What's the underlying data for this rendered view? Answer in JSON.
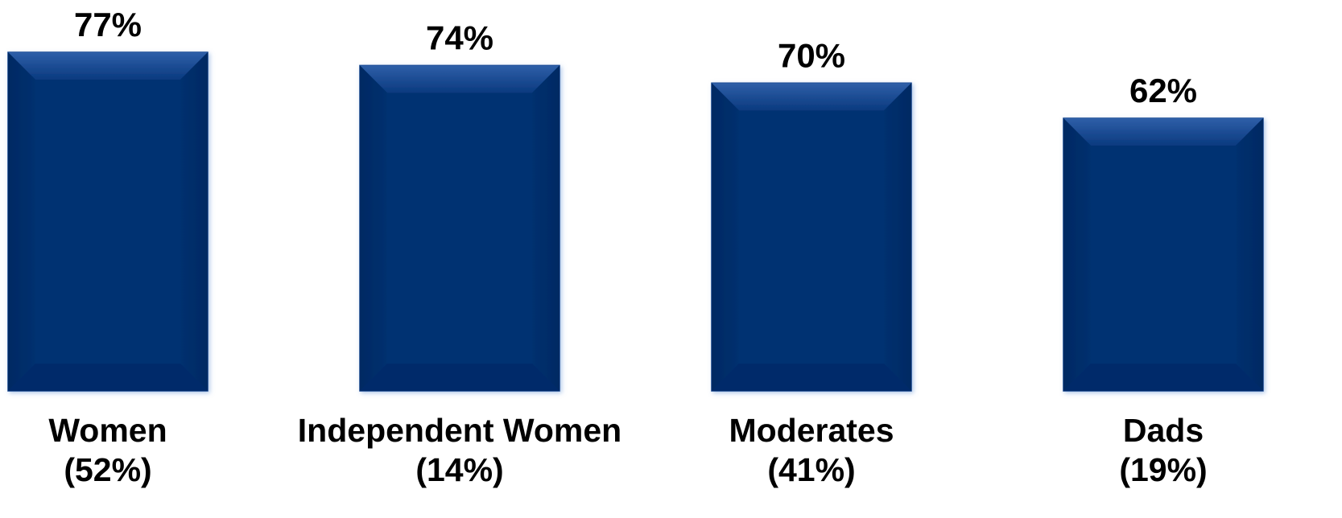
{
  "chart_data": {
    "type": "bar",
    "categories": [
      {
        "name": "Women",
        "share": "(52%)"
      },
      {
        "name": "Independent Women",
        "share": "(14%)"
      },
      {
        "name": "Moderates",
        "share": "(41%)"
      },
      {
        "name": "Dads",
        "share": "(19%)"
      }
    ],
    "values": [
      77,
      74,
      70,
      62
    ],
    "value_labels": [
      "77%",
      "74%",
      "70%",
      "62%"
    ],
    "title": "",
    "xlabel": "",
    "ylabel": "",
    "grid": false,
    "legend": "none",
    "bar_color": "#043072"
  }
}
